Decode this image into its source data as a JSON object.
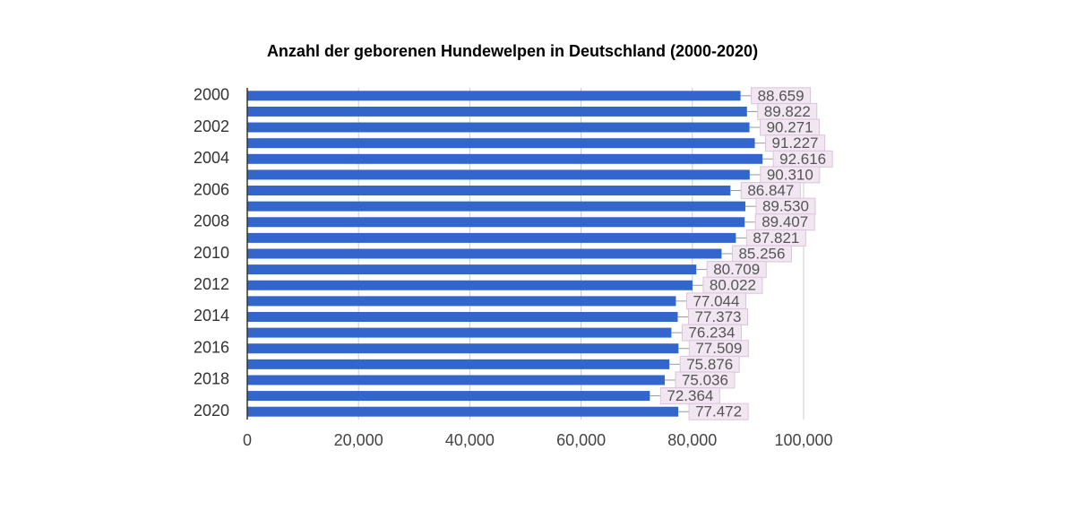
{
  "chart_data": {
    "type": "bar",
    "orientation": "horizontal",
    "title": "Anzahl der geborenen Hundewelpen in Deutschland (2000-2020)",
    "categories": [
      "2000",
      null,
      "2002",
      null,
      "2004",
      null,
      "2006",
      null,
      "2008",
      null,
      "2010",
      null,
      "2012",
      null,
      "2014",
      null,
      "2016",
      null,
      "2018",
      null,
      "2020"
    ],
    "values": [
      88659,
      89822,
      90271,
      91227,
      92616,
      90310,
      86847,
      89530,
      89407,
      87821,
      85256,
      80709,
      80022,
      77044,
      77373,
      76234,
      77509,
      75876,
      75036,
      72364,
      77472
    ],
    "value_labels": [
      "88.659",
      "89.822",
      "90.271",
      "91.227",
      "92.616",
      "90.310",
      "86.847",
      "89.530",
      "89.407",
      "87.821",
      "85.256",
      "80.709",
      "80.022",
      "77.044",
      "77.373",
      "76.234",
      "77.509",
      "75.876",
      "75.036",
      "72.364",
      "77.472"
    ],
    "color": "#3366cc",
    "xlim": [
      0,
      100000
    ],
    "xticks": [
      0,
      {
        "value": 20000,
        "label": "20,000"
      },
      {
        "value": 40000,
        "label": "40,000"
      },
      {
        "value": 60000,
        "label": "60,000"
      },
      {
        "value": 80000,
        "label": "80,000"
      },
      {
        "value": 100000,
        "label": "100,000"
      }
    ],
    "grid": true
  }
}
